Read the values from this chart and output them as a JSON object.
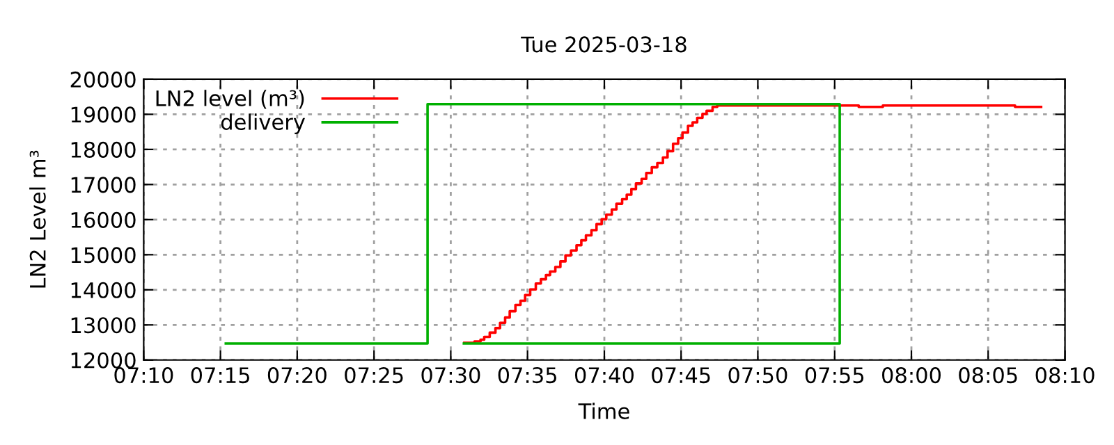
{
  "chart_data": {
    "type": "step",
    "title": "Tue 2025-03-18",
    "xlabel": "Time",
    "ylabel": "LN2 Level m³",
    "series": [
      {
        "name": "LN2 level (m³)",
        "color": "#ff0000",
        "x": [
          7.5147,
          7.5258,
          7.5323,
          7.5363,
          7.5423,
          7.5485,
          7.5535,
          7.559,
          7.564,
          7.5702,
          7.5757,
          7.5807,
          7.5862,
          7.5923,
          7.5978,
          7.6033,
          7.6078,
          7.6135,
          7.619,
          7.6245,
          7.6305,
          7.6365,
          7.6417,
          7.6467,
          7.6527,
          7.6582,
          7.6638,
          7.6688,
          7.6748,
          7.6798,
          7.686,
          7.691,
          7.696,
          7.701,
          7.7072,
          7.7122,
          7.7182,
          7.7242,
          7.7303,
          7.7353,
          7.7413,
          7.7468,
          7.7515,
          7.7575,
          7.7625,
          7.7675,
          7.7732,
          7.7777,
          7.7842,
          7.7892,
          7.9428,
          7.969,
          8.1125,
          8.1408
        ],
        "values": [
          12490,
          12530,
          12580,
          12660,
          12780,
          12910,
          13060,
          13210,
          13390,
          13570,
          13690,
          13850,
          14010,
          14180,
          14300,
          14420,
          14520,
          14650,
          14810,
          14980,
          15120,
          15270,
          15410,
          15550,
          15700,
          15870,
          16010,
          16140,
          16290,
          16450,
          16580,
          16710,
          16870,
          17030,
          17160,
          17330,
          17490,
          17610,
          17770,
          17950,
          18160,
          18320,
          18480,
          18670,
          18770,
          18900,
          19010,
          19100,
          19210,
          19250,
          19210,
          19250,
          19210,
          19210
        ]
      },
      {
        "name": "delivery",
        "color": "#00b000",
        "type": "line",
        "x": [
          7.2558,
          7.4748,
          7.4748,
          7.9222,
          7.9222,
          7.5142
        ],
        "values": [
          12470,
          12470,
          19290,
          19290,
          12470,
          12470
        ]
      }
    ],
    "xlim": [
      7.1667,
      8.1667
    ],
    "xticks": [
      {
        "value": 7.1667,
        "label": "07:10"
      },
      {
        "value": 7.25,
        "label": "07:15"
      },
      {
        "value": 7.3333,
        "label": "07:20"
      },
      {
        "value": 7.4167,
        "label": "07:25"
      },
      {
        "value": 7.5,
        "label": "07:30"
      },
      {
        "value": 7.5833,
        "label": "07:35"
      },
      {
        "value": 7.6667,
        "label": "07:40"
      },
      {
        "value": 7.75,
        "label": "07:45"
      },
      {
        "value": 7.8333,
        "label": "07:50"
      },
      {
        "value": 7.9167,
        "label": "07:55"
      },
      {
        "value": 8.0,
        "label": "08:00"
      },
      {
        "value": 8.0833,
        "label": "08:05"
      },
      {
        "value": 8.1667,
        "label": "08:10"
      }
    ],
    "ylim": [
      12000,
      20000
    ],
    "yticks": [
      12000,
      13000,
      14000,
      15000,
      16000,
      17000,
      18000,
      19000,
      20000
    ],
    "grid": true,
    "legend": "top left",
    "line_style": "solid"
  }
}
